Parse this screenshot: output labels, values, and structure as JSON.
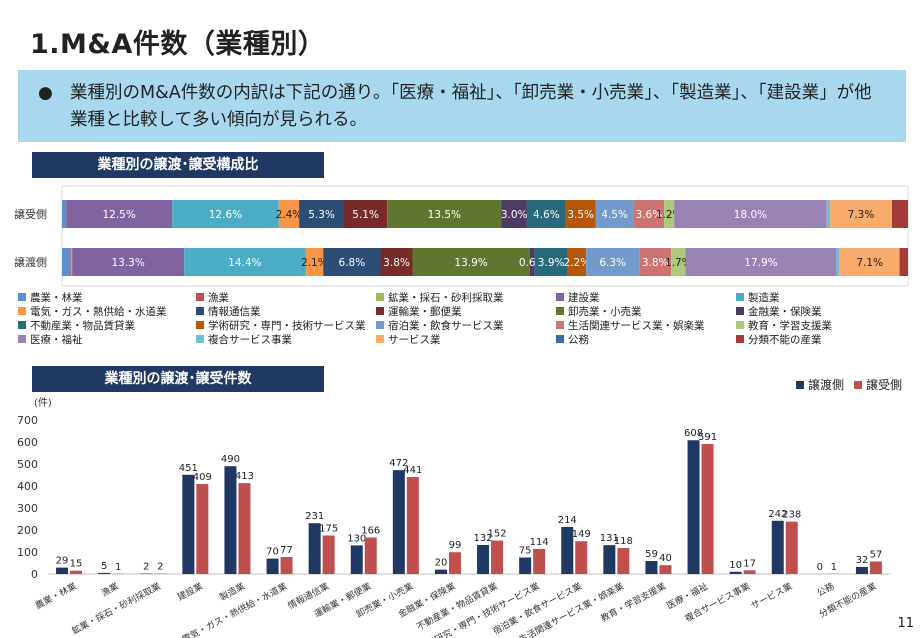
{
  "page": {
    "title": "1.M&A件数（業種別）",
    "bullet": "●",
    "summary": "業種別のM&A件数の内訳は下記の通り。「医療・福祉」、「卸売業・小売業」、「製造業」、「建設業」が他業種と比較して多い傾向が見られる。",
    "section1_title": "業種別の譲渡･譲受構成比",
    "section2_title": "業種別の譲渡･譲受件数",
    "page_number": "11"
  },
  "chart_data": [
    {
      "type": "bar",
      "orientation": "horizontal",
      "stacked": "percent",
      "title": "業種別の譲渡･譲受構成比",
      "categories": [
        "譲受側",
        "譲渡側"
      ],
      "legend_position": "bottom",
      "series": [
        {
          "name": "農業・林業",
          "color": "#5b8fd0",
          "values": [
            0.4,
            1.0
          ],
          "labels": [
            "",
            ""
          ]
        },
        {
          "name": "漁業",
          "color": "#c0504d",
          "values": [
            0.1,
            0.1
          ],
          "labels": [
            "",
            ""
          ]
        },
        {
          "name": "鉱業・採石・砂利採取業",
          "color": "#9bbb59",
          "values": [
            0.0,
            0.1
          ],
          "labels": [
            "",
            ""
          ]
        },
        {
          "name": "建設業",
          "color": "#8064a2",
          "values": [
            12.5,
            13.3
          ],
          "labels": [
            "12.5%",
            "13.3%"
          ]
        },
        {
          "name": "製造業",
          "color": "#4bacc6",
          "values": [
            12.6,
            14.4
          ],
          "labels": [
            "12.6%",
            "14.4%"
          ]
        },
        {
          "name": "電気・ガス・熱供給・水道業",
          "color": "#f79646",
          "values": [
            2.4,
            2.1
          ],
          "labels": [
            "2.4%",
            "2.1%"
          ]
        },
        {
          "name": "情報通信業",
          "color": "#2c4d75",
          "values": [
            5.3,
            6.8
          ],
          "labels": [
            "5.3%",
            "6.8%"
          ]
        },
        {
          "name": "運輸業・郵便業",
          "color": "#772c2a",
          "values": [
            5.1,
            3.8
          ],
          "labels": [
            "5.1%",
            "3.8%"
          ]
        },
        {
          "name": "卸売業・小売業",
          "color": "#5f7530",
          "values": [
            13.5,
            13.9
          ],
          "labels": [
            "13.5%",
            "13.9%"
          ]
        },
        {
          "name": "金融業・保険業",
          "color": "#4d3b62",
          "values": [
            3.0,
            0.6
          ],
          "labels": [
            "3.0%",
            "0.6%"
          ]
        },
        {
          "name": "不動産業・物品賃貸業",
          "color": "#276a7c",
          "values": [
            4.6,
            3.9
          ],
          "labels": [
            "4.6%",
            "3.9%"
          ]
        },
        {
          "name": "学術研究・専門・技術サービス業",
          "color": "#b65708",
          "values": [
            3.5,
            2.2
          ],
          "labels": [
            "3.5%",
            "2.2%"
          ]
        },
        {
          "name": "宿泊業・飲食サービス業",
          "color": "#729aca",
          "values": [
            4.5,
            6.3
          ],
          "labels": [
            "4.5%",
            "6.3%"
          ]
        },
        {
          "name": "生活関連サービス業・娯楽業",
          "color": "#cd7371",
          "values": [
            3.6,
            3.8
          ],
          "labels": [
            "3.6%",
            "3.8%"
          ]
        },
        {
          "name": "教育・学習支援業",
          "color": "#afc97a",
          "values": [
            1.2,
            1.7
          ],
          "labels": [
            "1.2%",
            "1.7%"
          ]
        },
        {
          "name": "医療・福祉",
          "color": "#9983b5",
          "values": [
            18.0,
            17.9
          ],
          "labels": [
            "18.0%",
            "17.9%"
          ]
        },
        {
          "name": "複合サービス事業",
          "color": "#6fc0d5",
          "values": [
            0.4,
            0.4
          ],
          "labels": [
            "",
            ""
          ]
        },
        {
          "name": "サービス業",
          "color": "#f9ab6b",
          "values": [
            7.3,
            7.1
          ],
          "labels": [
            "7.3%",
            "7.1%"
          ]
        },
        {
          "name": "公務",
          "color": "#3a6aa4",
          "values": [
            0.0,
            0.0
          ],
          "labels": [
            "",
            ""
          ]
        },
        {
          "name": "分類不能の産業",
          "color": "#a33b38",
          "values": [
            1.9,
            1.0
          ],
          "labels": [
            "",
            ""
          ]
        }
      ]
    },
    {
      "type": "bar",
      "title": "業種別の譲渡･譲受件数",
      "ylabel": "(件)",
      "ylim": [
        0,
        700
      ],
      "yticks": [
        0,
        100,
        200,
        300,
        400,
        500,
        600,
        700
      ],
      "legend_position": "top-right",
      "categories": [
        "農業・林業",
        "漁業",
        "鉱業・採石・砂利採取業",
        "建設業",
        "製造業",
        "電気・ガス・熱供給・水道業",
        "情報通信業",
        "運輸業・郵便業",
        "卸売業・小売業",
        "金融業・保険業",
        "不動産業・物品賃貸業",
        "学術研究・専門・技術サービス業",
        "宿泊業・飲食サービス業",
        "生活関連サービス業・娯楽業",
        "教育・学習支援業",
        "医療・福祉",
        "複合サービス事業",
        "サービス業",
        "公務",
        "分類不能の産業"
      ],
      "series": [
        {
          "name": "譲渡側",
          "color": "#1f3864",
          "values": [
            29,
            5,
            2,
            451,
            490,
            70,
            231,
            130,
            472,
            20,
            132,
            75,
            214,
            131,
            59,
            608,
            10,
            242,
            0,
            32
          ]
        },
        {
          "name": "譲受側",
          "color": "#c0504d",
          "values": [
            15,
            1,
            2,
            409,
            413,
            77,
            175,
            166,
            441,
            99,
            152,
            114,
            149,
            118,
            40,
            591,
            17,
            238,
            1,
            57
          ]
        }
      ]
    }
  ]
}
